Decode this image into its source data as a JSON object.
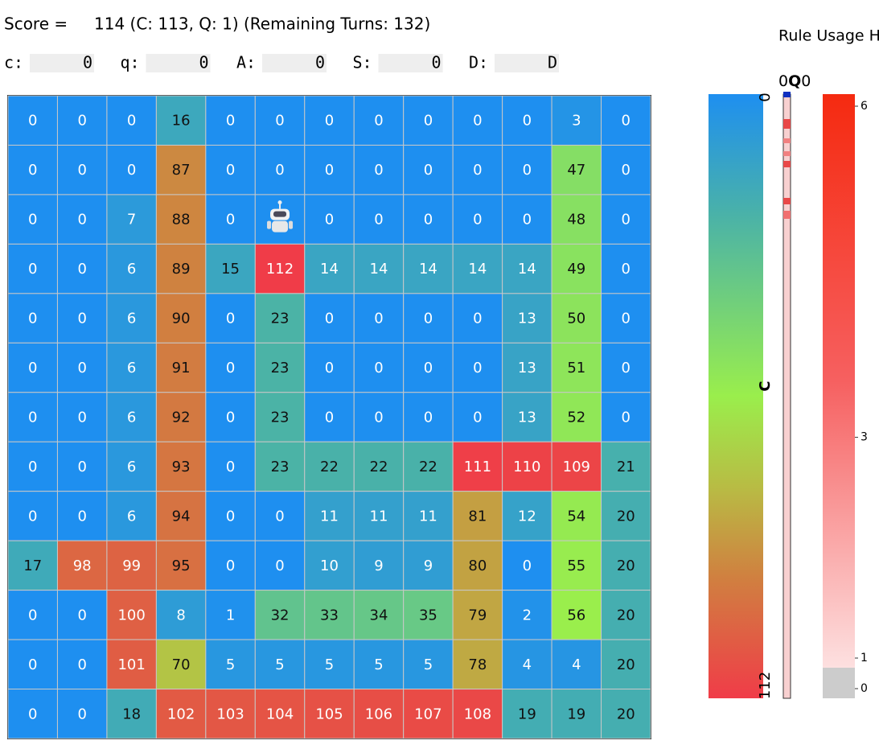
{
  "header": {
    "score_label": "Score =",
    "score_text": "114 (C: 113, Q: 1) (Remaining Turns: 132)"
  },
  "fields": [
    {
      "label": "c:",
      "value": 0
    },
    {
      "label": "q:",
      "value": 0
    },
    {
      "label": "A:",
      "value": 0
    },
    {
      "label": "S:",
      "value": 0
    },
    {
      "label": "D:",
      "value": "D"
    }
  ],
  "grid": {
    "rows": [
      [
        0,
        0,
        0,
        16,
        0,
        0,
        0,
        0,
        0,
        0,
        0,
        3,
        0
      ],
      [
        0,
        0,
        0,
        87,
        0,
        0,
        0,
        0,
        0,
        0,
        0,
        47,
        0
      ],
      [
        0,
        0,
        7,
        88,
        0,
        null,
        0,
        0,
        0,
        0,
        0,
        48,
        0
      ],
      [
        0,
        0,
        6,
        89,
        15,
        112,
        14,
        14,
        14,
        14,
        14,
        49,
        0
      ],
      [
        0,
        0,
        6,
        90,
        0,
        23,
        0,
        0,
        0,
        0,
        13,
        50,
        0
      ],
      [
        0,
        0,
        6,
        91,
        0,
        23,
        0,
        0,
        0,
        0,
        13,
        51,
        0
      ],
      [
        0,
        0,
        6,
        92,
        0,
        23,
        0,
        0,
        0,
        0,
        13,
        52,
        0
      ],
      [
        0,
        0,
        6,
        93,
        0,
        23,
        22,
        22,
        22,
        111,
        110,
        109,
        21
      ],
      [
        0,
        0,
        6,
        94,
        0,
        0,
        11,
        11,
        11,
        81,
        12,
        54,
        20
      ],
      [
        17,
        98,
        99,
        95,
        0,
        0,
        10,
        9,
        9,
        80,
        0,
        55,
        20
      ],
      [
        0,
        0,
        100,
        8,
        1,
        32,
        33,
        34,
        35,
        79,
        2,
        56,
        20
      ],
      [
        0,
        0,
        101,
        70,
        5,
        5,
        5,
        5,
        5,
        78,
        4,
        4,
        20
      ],
      [
        0,
        0,
        18,
        102,
        103,
        104,
        105,
        106,
        107,
        108,
        19,
        19,
        20
      ]
    ]
  },
  "colorbar": {
    "label": "C",
    "min": 0,
    "max": 112
  },
  "q_bar": {
    "left": "0",
    "label": "Q",
    "right": "0"
  },
  "rule_usage": {
    "title": "Rule Usage H",
    "ticks": [
      6,
      3,
      1,
      0
    ]
  }
}
